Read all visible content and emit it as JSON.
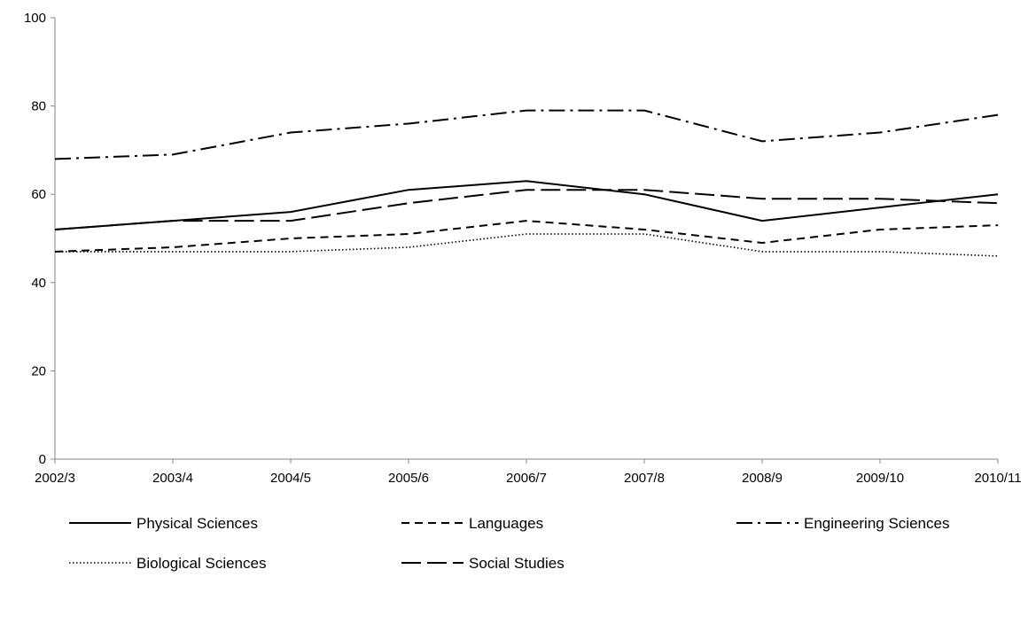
{
  "chart_data": {
    "type": "line",
    "title": "",
    "xlabel": "",
    "ylabel": "",
    "categories": [
      "2002/3",
      "2003/4",
      "2004/5",
      "2005/6",
      "2006/7",
      "2007/8",
      "2008/9",
      "2009/10",
      "2010/11"
    ],
    "ylim": [
      0,
      100
    ],
    "yticks": [
      0,
      20,
      40,
      60,
      80,
      100
    ],
    "grid": false,
    "legend_position": "bottom",
    "series": [
      {
        "name": "Physical Sciences",
        "dash": "solid",
        "color": "#000000",
        "values": [
          52,
          54,
          56,
          61,
          63,
          60,
          54,
          57,
          60
        ]
      },
      {
        "name": "Languages",
        "dash": "dashed",
        "color": "#000000",
        "values": [
          47,
          48,
          50,
          51,
          54,
          52,
          49,
          52,
          53
        ]
      },
      {
        "name": "Engineering Sciences",
        "dash": "dash-dot",
        "color": "#000000",
        "values": [
          68,
          69,
          74,
          76,
          79,
          79,
          72,
          74,
          78
        ]
      },
      {
        "name": "Biological Sciences",
        "dash": "dotted",
        "color": "#000000",
        "values": [
          47,
          47,
          47,
          48,
          51,
          51,
          47,
          47,
          46
        ]
      },
      {
        "name": "Social Studies",
        "dash": "long-dash",
        "color": "#000000",
        "values": [
          52,
          54,
          54,
          58,
          61,
          61,
          59,
          59,
          58
        ]
      }
    ]
  }
}
